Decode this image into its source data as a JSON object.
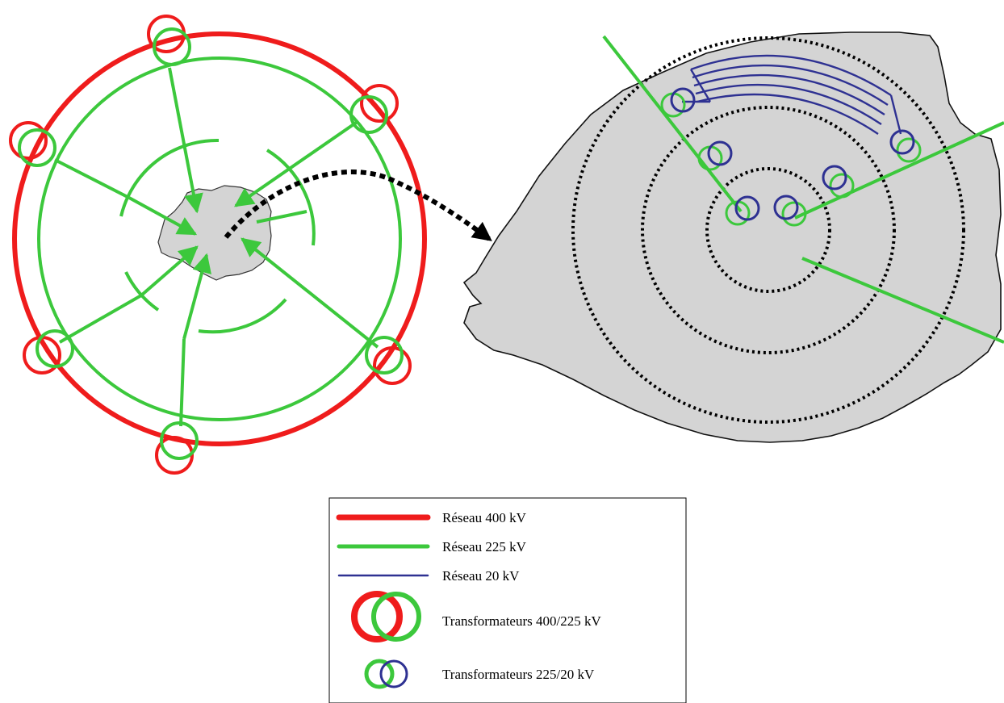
{
  "colors": {
    "network_400kv": "#ef1c1c",
    "network_225kv": "#3cc83c",
    "network_20kv": "#2e3192",
    "city_fill": "#d4d4d4",
    "dotted_ring": "#000000"
  },
  "legend": {
    "items": [
      {
        "label": "Réseau 400 kV",
        "kind": "line",
        "color_key": "network_400kv"
      },
      {
        "label": "Réseau 225 kV",
        "kind": "line",
        "color_key": "network_225kv"
      },
      {
        "label": "Réseau 20 kV",
        "kind": "line",
        "color_key": "network_20kv"
      },
      {
        "label": "Transformateurs 400/225 kV",
        "kind": "transformer",
        "color_key": "network_400kv"
      },
      {
        "label": "Transformateurs 225/20 kV",
        "kind": "transformer",
        "color_key": "network_225kv"
      }
    ]
  }
}
